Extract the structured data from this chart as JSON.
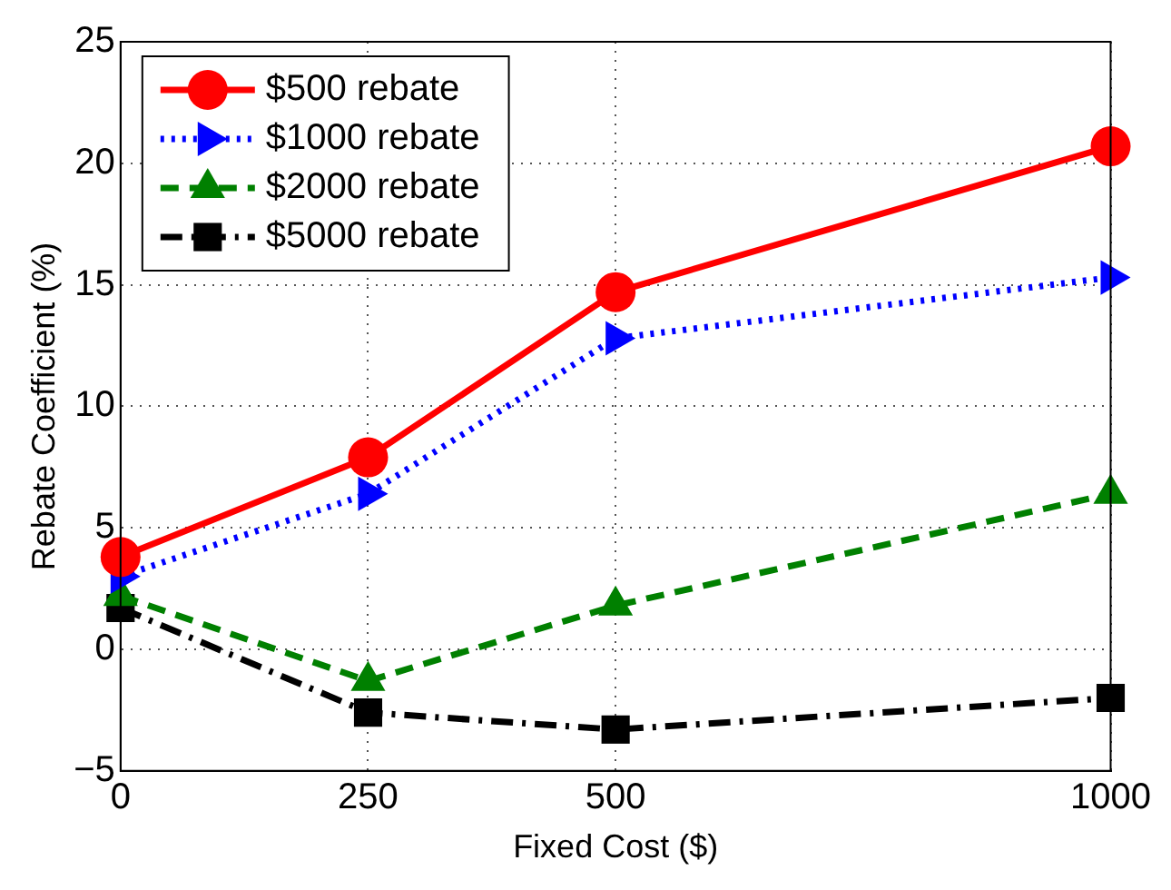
{
  "chart_data": {
    "type": "line",
    "xlabel": "Fixed Cost ($)",
    "ylabel": "Rebate Coefficient (%)",
    "x": [
      0,
      250,
      500,
      1000
    ],
    "series": [
      {
        "name": "$500 rebate",
        "color": "#ff0000",
        "marker": "circle",
        "line_style": "solid",
        "values": [
          3.8,
          7.9,
          14.7,
          20.7
        ]
      },
      {
        "name": "$1000 rebate",
        "color": "#0000ff",
        "marker": "triangle-right",
        "line_style": "dotted",
        "values": [
          3.0,
          6.4,
          12.8,
          15.3
        ]
      },
      {
        "name": "$2000 rebate",
        "color": "#008000",
        "marker": "triangle",
        "line_style": "dashed",
        "values": [
          2.2,
          -1.3,
          1.8,
          6.4
        ]
      },
      {
        "name": "$5000 rebate",
        "color": "#000000",
        "marker": "square",
        "line_style": "dashdot",
        "values": [
          1.7,
          -2.6,
          -3.3,
          -2.0
        ]
      }
    ],
    "xlim": [
      0,
      1000
    ],
    "xticks": [
      0,
      250,
      500,
      1000
    ],
    "ylim": [
      -5,
      25
    ],
    "yticks": [
      -5,
      0,
      5,
      10,
      15,
      20,
      25
    ],
    "grid": true,
    "legend": "top left"
  }
}
